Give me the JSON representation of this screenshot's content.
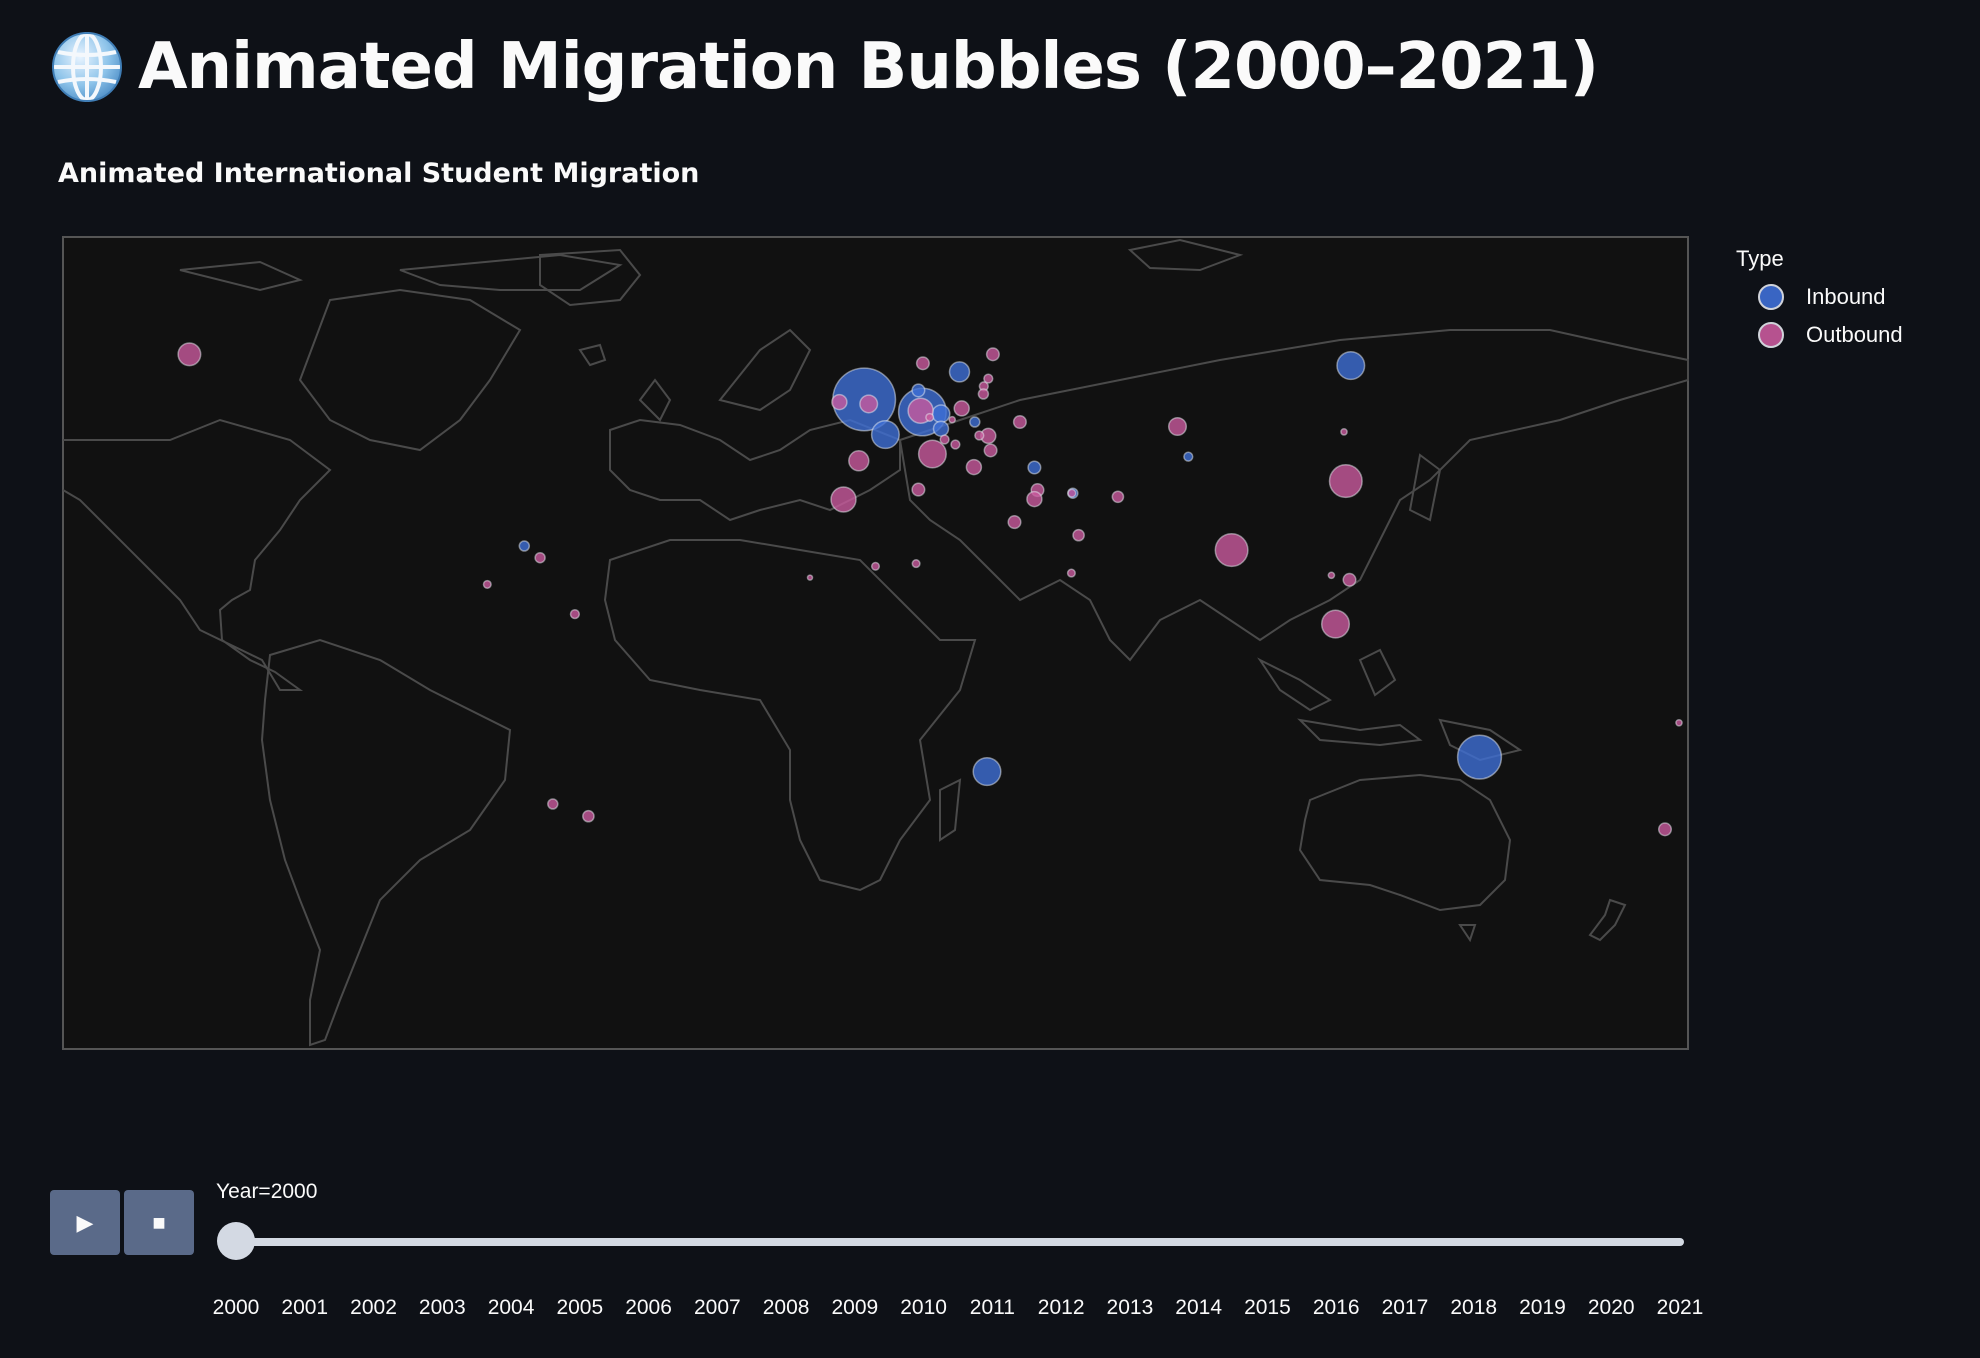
{
  "page": {
    "title": "Animated Migration Bubbles (2000–2021)",
    "title_icon": "globe-icon",
    "subtitle": "Animated International Student Migration"
  },
  "colors": {
    "inbound": "#3e6fd6",
    "outbound": "#c95a9d",
    "background": "#0e1117",
    "map_bg": "#111111",
    "coast": "#555555"
  },
  "legend": {
    "title": "Type",
    "items": [
      {
        "label": "Inbound",
        "color": "#3e6fd6"
      },
      {
        "label": "Outbound",
        "color": "#c95a9d"
      }
    ]
  },
  "controls": {
    "play_icon": "▶",
    "stop_icon": "■",
    "slider_label": "Year=2000",
    "selected_index": 0,
    "years": [
      "2000",
      "2001",
      "2002",
      "2003",
      "2004",
      "2005",
      "2006",
      "2007",
      "2008",
      "2009",
      "2010",
      "2011",
      "2012",
      "2013",
      "2014",
      "2015",
      "2016",
      "2017",
      "2018",
      "2019",
      "2020",
      "2021"
    ]
  },
  "chart_data": {
    "type": "scatter",
    "map_projection": "equirectangular",
    "lon_range": [
      -180,
      180
    ],
    "lat_range": [
      -90,
      90
    ],
    "frame": "2000",
    "series": [
      {
        "name": "Inbound",
        "color": "#3e6fd6",
        "points": [
          {
            "lon": -2.5,
            "lat": 54,
            "size": 50
          },
          {
            "lon": 10.4,
            "lat": 51.2,
            "size": 38
          },
          {
            "lon": 2.2,
            "lat": 46.2,
            "size": 22
          },
          {
            "lon": 133.8,
            "lat": -25.3,
            "size": 35
          },
          {
            "lon": 24.7,
            "lat": -28.5,
            "size": 22
          },
          {
            "lon": 105.3,
            "lat": 61.5,
            "size": 22
          },
          {
            "lon": 14.5,
            "lat": 50.8,
            "size": 14
          },
          {
            "lon": 18.6,
            "lat": 60.1,
            "size": 16
          },
          {
            "lon": 9.5,
            "lat": 56.0,
            "size": 10
          },
          {
            "lon": 14.5,
            "lat": 47.5,
            "size": 12
          },
          {
            "lon": 35.2,
            "lat": 38.9,
            "size": 10
          },
          {
            "lon": 43.7,
            "lat": 33.2,
            "size": 8
          },
          {
            "lon": -77.8,
            "lat": 21.5,
            "size": 8
          },
          {
            "lon": 69.3,
            "lat": 41.3,
            "size": 7
          },
          {
            "lon": 22.0,
            "lat": 49.0,
            "size": 8
          }
        ]
      },
      {
        "name": "Outbound",
        "color": "#c95a9d",
        "points": [
          {
            "lon": 104.2,
            "lat": 35.9,
            "size": 26
          },
          {
            "lon": 78.9,
            "lat": 20.6,
            "size": 26
          },
          {
            "lon": 101.9,
            "lat": 4.2,
            "size": 22
          },
          {
            "lon": 12.6,
            "lat": 41.9,
            "size": 22
          },
          {
            "lon": -7.1,
            "lat": 31.8,
            "size": 20
          },
          {
            "lon": 10.0,
            "lat": 51.5,
            "size": 20
          },
          {
            "lon": -3.7,
            "lat": 40.4,
            "size": 16
          },
          {
            "lon": 66.9,
            "lat": 48.0,
            "size": 14
          },
          {
            "lon": -152,
            "lat": 64,
            "size": 18
          },
          {
            "lon": -1.5,
            "lat": 53.0,
            "size": 14
          },
          {
            "lon": -8.0,
            "lat": 53.4,
            "size": 12
          },
          {
            "lon": 19.1,
            "lat": 52.0,
            "size": 12
          },
          {
            "lon": 25.0,
            "lat": 45.9,
            "size": 12
          },
          {
            "lon": 25.5,
            "lat": 42.7,
            "size": 10
          },
          {
            "lon": 21.8,
            "lat": 39.0,
            "size": 12
          },
          {
            "lon": 32.0,
            "lat": 49.0,
            "size": 10
          },
          {
            "lon": 9.5,
            "lat": 34.0,
            "size": 10
          },
          {
            "lon": 35.9,
            "lat": 33.9,
            "size": 10
          },
          {
            "lon": 30.8,
            "lat": 26.8,
            "size": 10
          },
          {
            "lon": 45.0,
            "lat": 23.9,
            "size": 9
          },
          {
            "lon": 10.5,
            "lat": 62.0,
            "size": 10
          },
          {
            "lon": 26.0,
            "lat": 64.0,
            "size": 10
          },
          {
            "lon": 24.0,
            "lat": 56.9,
            "size": 7
          },
          {
            "lon": 25.0,
            "lat": 58.6,
            "size": 7
          },
          {
            "lon": 23.9,
            "lat": 55.2,
            "size": 8
          },
          {
            "lon": 15.3,
            "lat": 45.1,
            "size": 7
          },
          {
            "lon": 17.7,
            "lat": 44.0,
            "size": 7
          },
          {
            "lon": 105.0,
            "lat": 14.0,
            "size": 10
          },
          {
            "lon": 101.0,
            "lat": 15.0,
            "size": 5
          },
          {
            "lon": 174.9,
            "lat": -41.3,
            "size": 10
          },
          {
            "lon": -63.6,
            "lat": -38.4,
            "size": 9
          },
          {
            "lon": -71.5,
            "lat": -35.7,
            "size": 8
          },
          {
            "lon": -66.6,
            "lat": 6.4,
            "size": 7
          },
          {
            "lon": -74.3,
            "lat": 18.9,
            "size": 8
          },
          {
            "lon": -86.0,
            "lat": 13.0,
            "size": 6
          },
          {
            "lon": 53.7,
            "lat": 32.4,
            "size": 9
          },
          {
            "lon": 35.2,
            "lat": 31.9,
            "size": 12
          },
          {
            "lon": 43.4,
            "lat": 15.5,
            "size": 6
          },
          {
            "lon": 103.8,
            "lat": 46.8,
            "size": 5
          },
          {
            "lon": 178.0,
            "lat": -17.7,
            "size": 5
          },
          {
            "lon": 0.0,
            "lat": 17.0,
            "size": 6
          },
          {
            "lon": 9.0,
            "lat": 17.6,
            "size": 6
          },
          {
            "lon": -14.5,
            "lat": 14.5,
            "size": 4
          },
          {
            "lon": 43.5,
            "lat": 33.2,
            "size": 6
          },
          {
            "lon": 23.0,
            "lat": 46.0,
            "size": 7
          },
          {
            "lon": 12.0,
            "lat": 50.0,
            "size": 6
          },
          {
            "lon": 17.0,
            "lat": 49.5,
            "size": 5
          }
        ]
      }
    ]
  }
}
